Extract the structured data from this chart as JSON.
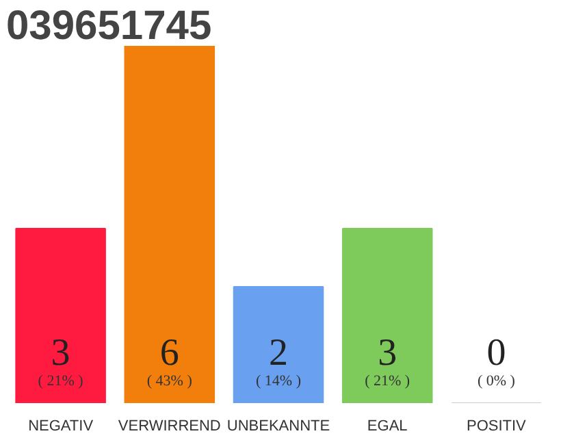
{
  "chart_data": {
    "type": "bar",
    "title": "039651745",
    "categories": [
      "NEGATIV",
      "VERWIRREND",
      "UNBEKANNTE",
      "EGAL",
      "POSITIV"
    ],
    "values": [
      21,
      43,
      14,
      21,
      0
    ],
    "colors": [
      "#ff1a40",
      "#f27f0c",
      "#6aa0f0",
      "#7ecb5c",
      "#cccccc"
    ],
    "tick_labels": "x",
    "value_labels": [
      "( 21% )",
      "( 43% )",
      "( 14% )",
      "( 21% )",
      "( 0% )"
    ],
    "annotations": [
      "3",
      "6",
      "2",
      "3",
      "0"
    ]
  }
}
